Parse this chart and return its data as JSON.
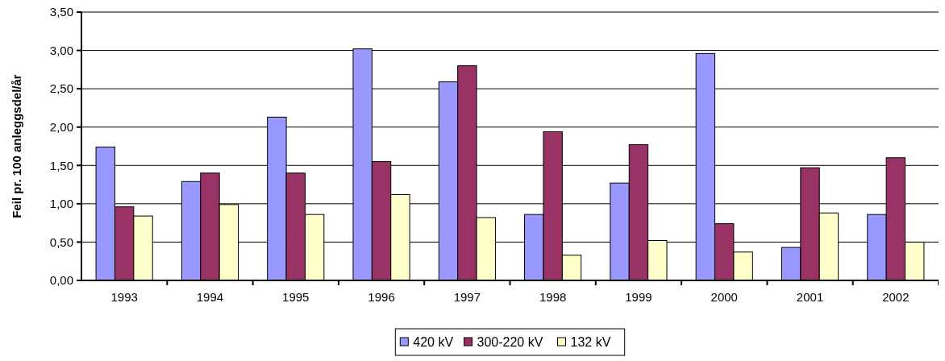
{
  "chart_data": {
    "type": "bar",
    "ylabel": "Feil pr. 100 anleggsdel/år",
    "categories": [
      "1993",
      "1994",
      "1995",
      "1996",
      "1997",
      "1998",
      "1999",
      "2000",
      "2001",
      "2002"
    ],
    "series": [
      {
        "name": "420 kV",
        "color": "#9999ff",
        "values": [
          1.74,
          1.29,
          2.13,
          3.02,
          2.59,
          0.86,
          1.27,
          2.96,
          0.43,
          0.86
        ]
      },
      {
        "name": "300-220 kV",
        "color": "#993366",
        "values": [
          0.96,
          1.4,
          1.4,
          1.55,
          2.8,
          1.94,
          1.77,
          0.74,
          1.47,
          1.6
        ]
      },
      {
        "name": "132 kV",
        "color": "#ffffcc",
        "values": [
          0.84,
          0.99,
          0.86,
          1.12,
          0.82,
          0.33,
          0.52,
          0.37,
          0.88,
          0.5
        ]
      }
    ],
    "ylim": [
      0,
      3.5
    ],
    "yticks": [
      {
        "value": 0,
        "label": "0,00"
      },
      {
        "value": 0.5,
        "label": "0,50"
      },
      {
        "value": 1,
        "label": "1,00"
      },
      {
        "value": 1.5,
        "label": "1,50"
      },
      {
        "value": 2,
        "label": "2,00"
      },
      {
        "value": 2.5,
        "label": "2,50"
      },
      {
        "value": 3,
        "label": "3,00"
      },
      {
        "value": 3.5,
        "label": "3,50"
      }
    ],
    "grid": "y",
    "legend": "bottom"
  }
}
